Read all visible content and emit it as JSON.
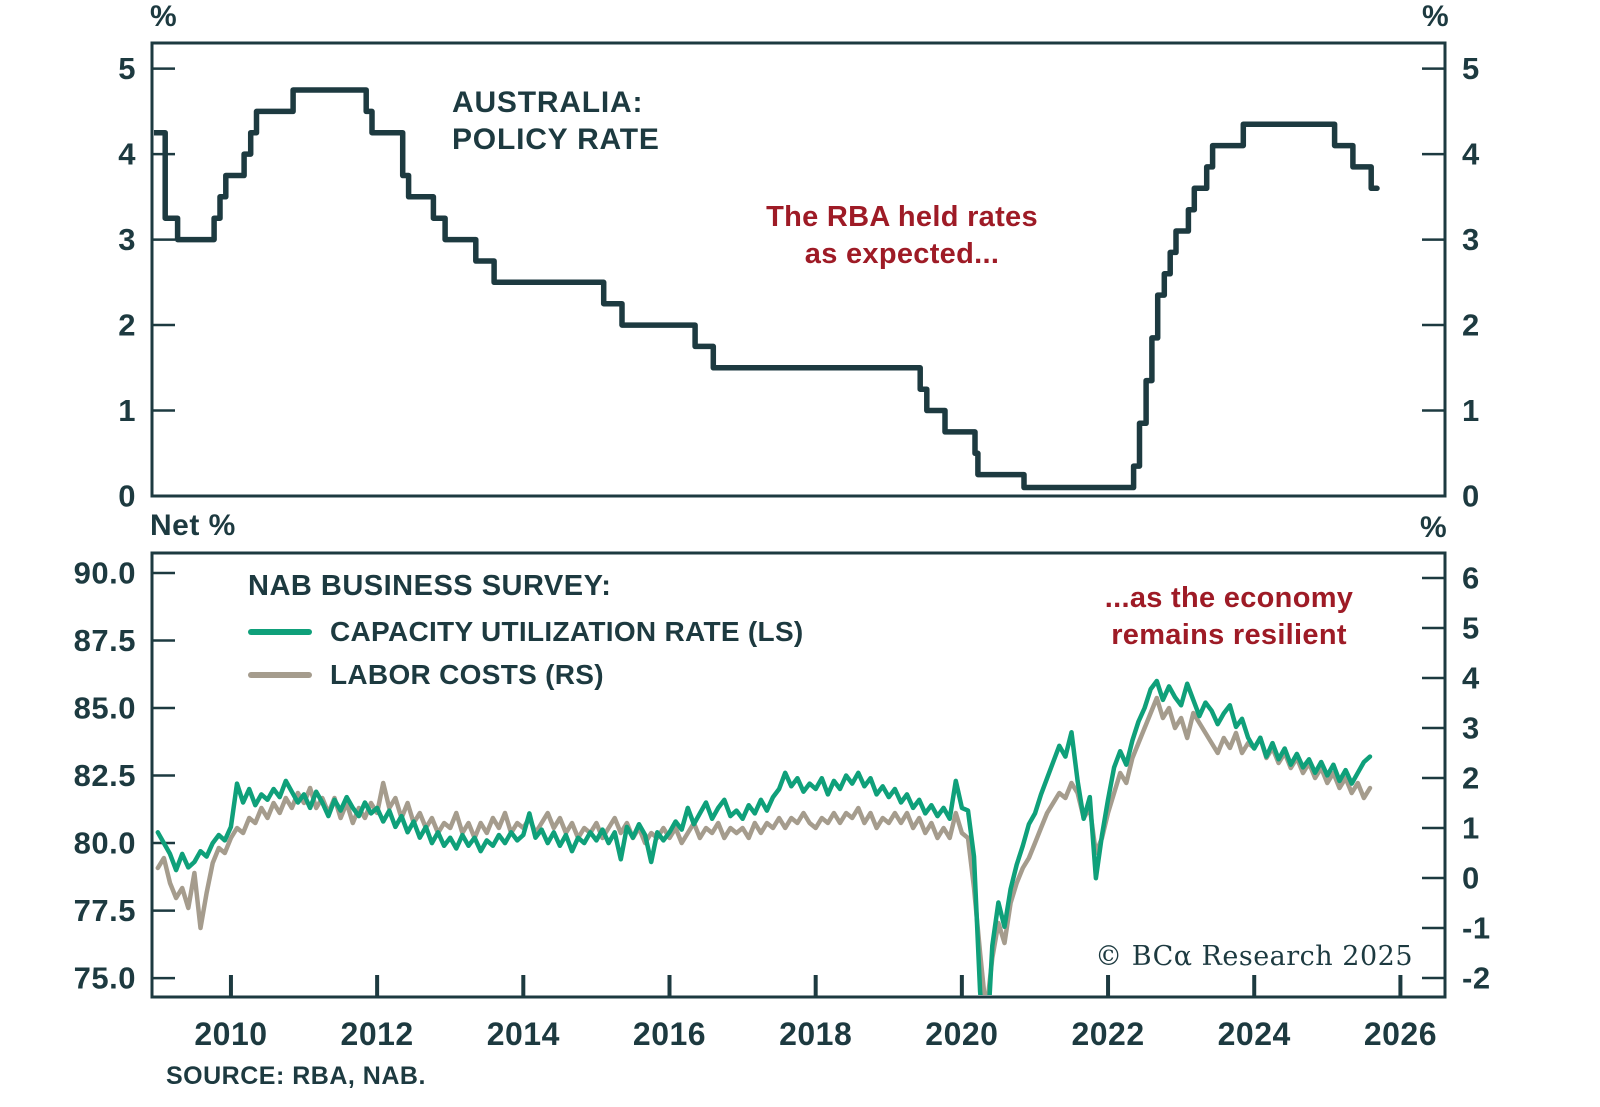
{
  "colors": {
    "dark": "#1d3a40",
    "red": "#9e1b26",
    "green": "#0fa07a",
    "grey": "#a59c8d",
    "bg": "#ffffff"
  },
  "footer": {
    "source": "SOURCE: RBA, NAB.",
    "copyright": "© BCα Research 2025"
  },
  "chart_data": [
    {
      "type": "line",
      "panel": "top",
      "title_lines": [
        "AUSTRALIA:",
        "POLICY RATE"
      ],
      "unit_left": "%",
      "unit_right": "%",
      "annotation": {
        "lines": [
          "The RBA held rates",
          "as expected..."
        ]
      },
      "xlim": [
        2008.92,
        2026.61
      ],
      "ylim": [
        0,
        5.3
      ],
      "yticks": [
        0,
        1,
        2,
        3,
        4,
        5
      ],
      "grid": false,
      "legend_position": "none",
      "series": [
        {
          "name": "Australia policy rate",
          "style": "step",
          "color_key": "dark",
          "points": [
            [
              2008.92,
              4.25
            ],
            [
              2009.1,
              3.25
            ],
            [
              2009.27,
              3.0
            ],
            [
              2009.77,
              3.25
            ],
            [
              2009.85,
              3.5
            ],
            [
              2009.93,
              3.75
            ],
            [
              2010.18,
              4.0
            ],
            [
              2010.27,
              4.25
            ],
            [
              2010.35,
              4.5
            ],
            [
              2010.85,
              4.75
            ],
            [
              2011.85,
              4.5
            ],
            [
              2011.93,
              4.25
            ],
            [
              2012.35,
              3.75
            ],
            [
              2012.43,
              3.5
            ],
            [
              2012.77,
              3.25
            ],
            [
              2012.93,
              3.0
            ],
            [
              2013.35,
              2.75
            ],
            [
              2013.6,
              2.5
            ],
            [
              2015.1,
              2.25
            ],
            [
              2015.35,
              2.0
            ],
            [
              2016.35,
              1.75
            ],
            [
              2016.6,
              1.5
            ],
            [
              2019.43,
              1.25
            ],
            [
              2019.52,
              1.0
            ],
            [
              2019.77,
              0.75
            ],
            [
              2020.18,
              0.5
            ],
            [
              2020.22,
              0.25
            ],
            [
              2020.85,
              0.1
            ],
            [
              2022.35,
              0.35
            ],
            [
              2022.43,
              0.85
            ],
            [
              2022.52,
              1.35
            ],
            [
              2022.6,
              1.85
            ],
            [
              2022.68,
              2.35
            ],
            [
              2022.77,
              2.6
            ],
            [
              2022.85,
              2.85
            ],
            [
              2022.93,
              3.1
            ],
            [
              2023.1,
              3.35
            ],
            [
              2023.18,
              3.6
            ],
            [
              2023.35,
              3.85
            ],
            [
              2023.43,
              4.1
            ],
            [
              2023.85,
              4.35
            ],
            [
              2025.1,
              4.1
            ],
            [
              2025.35,
              3.85
            ],
            [
              2025.6,
              3.6
            ],
            [
              2025.68,
              3.6
            ]
          ]
        }
      ]
    },
    {
      "type": "line",
      "panel": "bottom",
      "legend_title": "NAB BUSINESS SURVEY:",
      "unit_left": "Net %",
      "unit_right": "%",
      "annotation": {
        "lines": [
          "...as the economy",
          "remains resilient"
        ]
      },
      "xlim": [
        2008.92,
        2026.61
      ],
      "ylim_left": [
        74.3,
        90.74
      ],
      "ylim_right": [
        -2.38,
        6.5
      ],
      "yticks_left": [
        "90.0",
        "87.5",
        "85.0",
        "82.5",
        "80.0",
        "77.5",
        "75.0"
      ],
      "yticks_right": [
        "6",
        "5",
        "4",
        "3",
        "2",
        "1",
        "0",
        "-1",
        "-2"
      ],
      "xticks": [
        2010,
        2012,
        2014,
        2016,
        2018,
        2020,
        2022,
        2024,
        2026
      ],
      "grid": false,
      "series": [
        {
          "name": "CAPACITY UTILIZATION RATE (LS)",
          "axis": "left",
          "style": "line",
          "color_key": "green",
          "x_start": 2009.0,
          "x_step_months": 1,
          "values": [
            80.4,
            80.0,
            79.6,
            79.0,
            79.6,
            79.1,
            79.3,
            79.7,
            79.5,
            80.0,
            80.3,
            80.1,
            80.6,
            82.2,
            81.5,
            82.0,
            81.4,
            81.8,
            81.6,
            82.0,
            81.7,
            82.3,
            81.9,
            81.5,
            81.8,
            81.3,
            81.9,
            81.5,
            81.0,
            81.6,
            81.2,
            81.7,
            81.3,
            81.0,
            81.5,
            81.1,
            81.3,
            80.8,
            81.2,
            80.6,
            81.0,
            80.4,
            80.8,
            80.2,
            80.6,
            80.0,
            80.4,
            79.9,
            80.2,
            79.8,
            80.3,
            79.9,
            80.2,
            79.7,
            80.1,
            79.9,
            80.3,
            80.0,
            80.4,
            80.1,
            80.3,
            81.1,
            80.2,
            80.5,
            80.0,
            80.4,
            79.9,
            80.3,
            79.7,
            80.2,
            80.0,
            80.4,
            80.1,
            80.5,
            80.0,
            80.4,
            79.4,
            80.6,
            80.2,
            80.7,
            80.3,
            79.3,
            80.4,
            80.1,
            80.4,
            80.8,
            80.5,
            81.3,
            80.7,
            81.1,
            81.5,
            80.9,
            81.3,
            81.6,
            81.0,
            81.2,
            80.9,
            81.4,
            81.1,
            81.6,
            81.2,
            81.7,
            82.0,
            82.6,
            82.1,
            82.4,
            81.9,
            82.2,
            82.0,
            82.4,
            81.8,
            82.3,
            82.0,
            82.5,
            82.2,
            82.6,
            82.1,
            82.4,
            81.8,
            82.1,
            81.7,
            82.0,
            81.5,
            81.8,
            81.3,
            81.6,
            81.1,
            81.4,
            81.0,
            81.3,
            80.9,
            82.3,
            81.3,
            81.2,
            79.5,
            74.5,
            72.0,
            76.2,
            77.8,
            76.9,
            78.3,
            79.2,
            79.9,
            80.7,
            81.1,
            81.8,
            82.4,
            83.0,
            83.6,
            83.2,
            84.1,
            82.3,
            80.9,
            81.7,
            78.7,
            80.3,
            81.6,
            82.8,
            83.4,
            82.9,
            83.8,
            84.5,
            85.0,
            85.7,
            86.0,
            85.3,
            85.8,
            85.4,
            85.1,
            85.9,
            85.3,
            84.7,
            85.2,
            84.9,
            84.4,
            84.8,
            85.1,
            84.3,
            84.6,
            83.9,
            83.5,
            83.9,
            83.2,
            83.7,
            83.1,
            83.5,
            82.9,
            83.3,
            82.8,
            83.1,
            82.6,
            83.0,
            82.5,
            82.9,
            82.3,
            82.7,
            82.2,
            82.6,
            83.0,
            83.2
          ]
        },
        {
          "name": "LABOR COSTS (RS)",
          "axis": "right",
          "style": "line",
          "color_key": "grey",
          "x_start": 2009.0,
          "x_step_months": 1,
          "values": [
            0.2,
            0.4,
            -0.1,
            -0.4,
            -0.2,
            -0.6,
            0.1,
            -1.0,
            -0.3,
            0.3,
            0.6,
            0.5,
            0.8,
            1.0,
            0.9,
            1.2,
            1.1,
            1.4,
            1.2,
            1.5,
            1.3,
            1.6,
            1.4,
            1.7,
            1.5,
            1.8,
            1.4,
            1.6,
            1.3,
            1.6,
            1.2,
            1.5,
            1.1,
            1.4,
            1.2,
            1.5,
            1.3,
            1.9,
            1.4,
            1.6,
            1.2,
            1.5,
            1.1,
            1.3,
            1.0,
            1.2,
            0.9,
            1.1,
            1.0,
            1.3,
            0.9,
            1.1,
            0.8,
            1.1,
            0.9,
            1.2,
            1.0,
            1.3,
            0.9,
            1.1,
            1.0,
            1.2,
            0.9,
            1.1,
            1.3,
            1.0,
            1.2,
            0.9,
            1.1,
            0.8,
            1.0,
            0.9,
            1.1,
            0.8,
            1.0,
            1.2,
            0.9,
            1.1,
            0.8,
            1.0,
            0.7,
            0.9,
            0.8,
            1.0,
            0.8,
            1.0,
            0.7,
            0.9,
            1.1,
            0.8,
            1.0,
            0.9,
            1.1,
            0.8,
            1.0,
            0.9,
            1.0,
            0.8,
            1.1,
            0.9,
            1.1,
            1.0,
            1.2,
            1.0,
            1.2,
            1.1,
            1.3,
            1.1,
            1.0,
            1.2,
            1.1,
            1.3,
            1.1,
            1.3,
            1.2,
            1.4,
            1.1,
            1.3,
            1.0,
            1.2,
            1.1,
            1.3,
            1.1,
            1.3,
            1.0,
            1.2,
            0.9,
            1.1,
            0.8,
            1.0,
            0.8,
            1.3,
            0.9,
            0.8,
            -0.2,
            -1.5,
            -2.7,
            -1.6,
            -0.9,
            -1.3,
            -0.5,
            -0.1,
            0.2,
            0.4,
            0.7,
            1.0,
            1.3,
            1.5,
            1.7,
            1.6,
            1.9,
            1.7,
            1.2,
            1.4,
            0.5,
            0.8,
            1.3,
            1.7,
            2.1,
            1.9,
            2.4,
            2.7,
            3.0,
            3.3,
            3.6,
            3.2,
            3.4,
            3.0,
            3.2,
            2.8,
            3.3,
            3.1,
            2.9,
            2.7,
            2.5,
            2.8,
            2.6,
            2.9,
            2.5,
            2.7,
            2.6,
            2.8,
            2.4,
            2.6,
            2.3,
            2.5,
            2.2,
            2.4,
            2.1,
            2.3,
            2.0,
            2.2,
            1.9,
            2.1,
            1.8,
            2.0,
            1.7,
            1.9,
            1.6,
            1.8
          ]
        }
      ]
    }
  ]
}
